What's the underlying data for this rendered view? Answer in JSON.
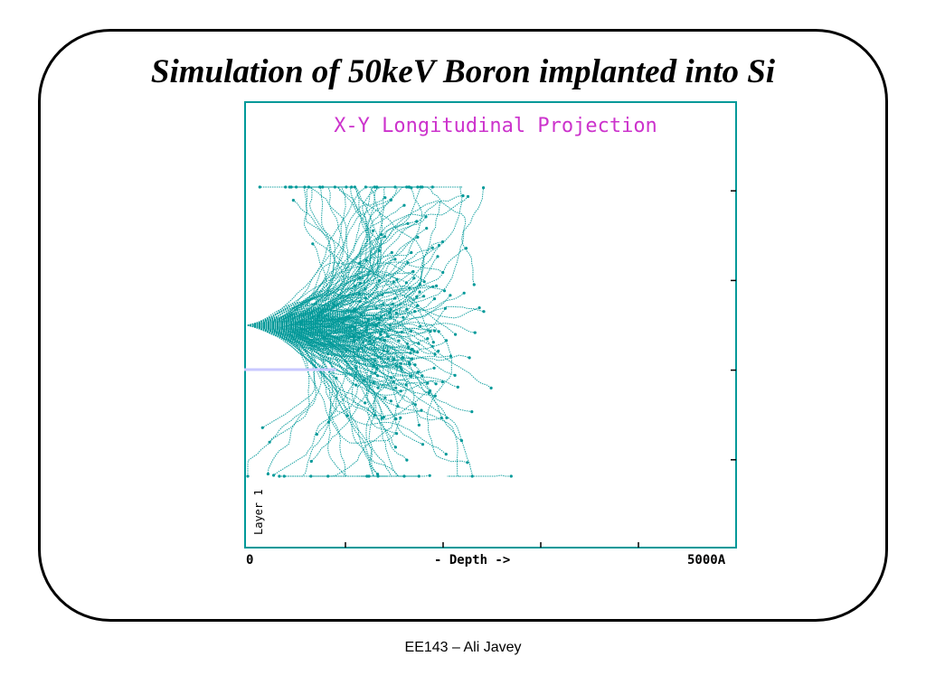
{
  "slide": {
    "title": "Simulation of 50keV Boron implanted into Si",
    "footer": "EE143 – Ali Javey"
  },
  "chart_data": {
    "type": "scatter",
    "title": "X-Y Longitudinal Projection",
    "xlabel": "- Depth ->",
    "ylabel": "",
    "layer_label": "Layer 1",
    "x_tick_labels": [
      "0",
      "- Depth ->",
      "5000A"
    ],
    "xlim": [
      0,
      5000
    ],
    "x_unit": "A",
    "ion_energy": "50keV",
    "ion": "Boron",
    "target": "Si",
    "trajectory_count": 250,
    "projected_range_estimate": 1550,
    "max_depth_estimate": 2800,
    "lateral_spread_estimate": 1250,
    "colors": {
      "trajectories": "#009999",
      "title": "#cc33cc",
      "frame": "#009999",
      "layer_marker": "#c8c8ff",
      "axes": "#000000"
    },
    "grid": false
  }
}
